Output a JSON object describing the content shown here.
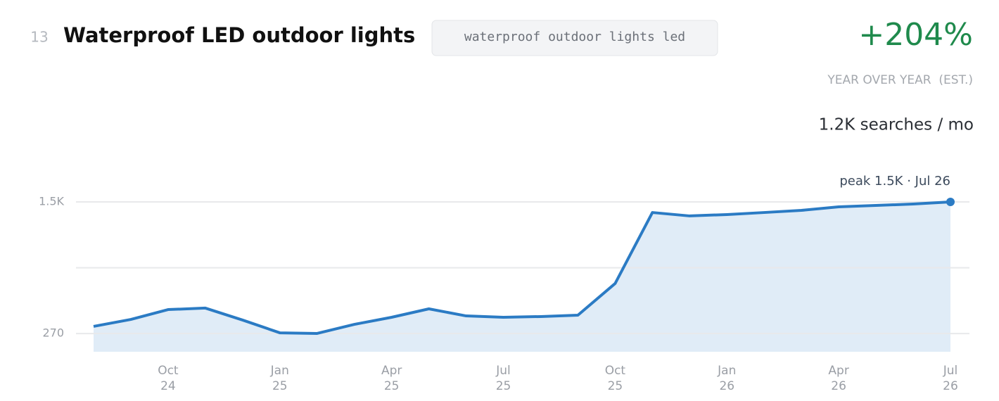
{
  "chart_data": {
    "type": "area",
    "rank": 13,
    "title": "Waterproof LED outdoor lights",
    "keyword": "waterproof outdoor lights led",
    "growth": "+204%",
    "growth_caption": "YEAR OVER YEAR  (EST.)",
    "volume": "1.2K searches / mo",
    "annotation": "peak 1.5K · Jul 26",
    "x": [
      "2024-08",
      "2024-09",
      "2024-10",
      "2024-11",
      "2024-12",
      "2025-01",
      "2025-02",
      "2025-03",
      "2025-04",
      "2025-05",
      "2025-06",
      "2025-07",
      "2025-08",
      "2025-09",
      "2025-10",
      "2025-11",
      "2025-12",
      "2026-01",
      "2026-02",
      "2026-03",
      "2026-04",
      "2026-05",
      "2026-06",
      "2026-07"
    ],
    "series": [
      {
        "color": "#2b7bc4",
        "fill": "#e0ecf7",
        "values": [
          337,
          402,
          494,
          508,
          396,
          277,
          271,
          356,
          422,
          501,
          435,
          422,
          429,
          442,
          738,
          1401,
          1369,
          1382,
          1401,
          1421,
          1454,
          1467,
          1480,
          1500
        ]
      }
    ],
    "xlim": [
      "2024-08",
      "2026-07"
    ],
    "xticks": [
      {
        "value": "2024-10",
        "label": [
          "Oct",
          "24"
        ]
      },
      {
        "value": "2025-01",
        "label": [
          "Jan",
          "25"
        ]
      },
      {
        "value": "2025-04",
        "label": [
          "Apr",
          "25"
        ]
      },
      {
        "value": "2025-07",
        "label": [
          "Jul",
          "25"
        ]
      },
      {
        "value": "2025-10",
        "label": [
          "Oct",
          "25"
        ]
      },
      {
        "value": "2026-01",
        "label": [
          "Jan",
          "26"
        ]
      },
      {
        "value": "2026-04",
        "label": [
          "Apr",
          "26"
        ]
      },
      {
        "value": "2026-07",
        "label": [
          "Jul",
          "26"
        ]
      }
    ],
    "ylim": [
      100,
      1500
    ],
    "yticks": [
      270,
      {
        "value": 885,
        "label": null
      },
      {
        "value": 1500,
        "label": "1.5K"
      }
    ],
    "grid": true
  }
}
